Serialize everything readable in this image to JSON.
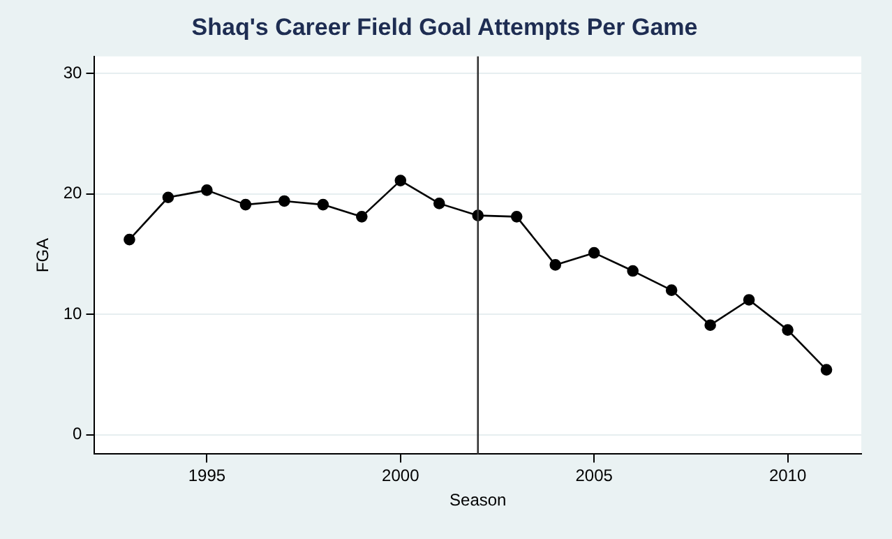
{
  "chart_data": {
    "type": "line",
    "title": "Shaq's Career Field Goal Attempts Per Game",
    "xlabel": "Season",
    "ylabel": "FGA",
    "x": [
      1993,
      1994,
      1995,
      1996,
      1997,
      1998,
      1999,
      2000,
      2001,
      2002,
      2003,
      2004,
      2005,
      2006,
      2007,
      2008,
      2009,
      2010,
      2011
    ],
    "series": [
      {
        "color": "#000000",
        "values": [
          16.2,
          19.7,
          20.3,
          19.1,
          19.4,
          19.1,
          18.1,
          21.1,
          19.2,
          18.2,
          18.1,
          14.1,
          15.1,
          13.6,
          12.0,
          9.1,
          11.2,
          8.7,
          5.4
        ]
      }
    ],
    "xlim": [
      1992.1,
      2011.9
    ],
    "xticks": [
      1995,
      2000,
      2005,
      2010
    ],
    "ylim": [
      -1.6,
      31.4
    ],
    "yticks": [
      0,
      10,
      20,
      30
    ],
    "ref_lines": [
      {
        "axis": "x",
        "value": 2002,
        "color": "#333333"
      }
    ],
    "grid": "y",
    "legend": false,
    "marker": "circle",
    "line_style": "solid"
  }
}
